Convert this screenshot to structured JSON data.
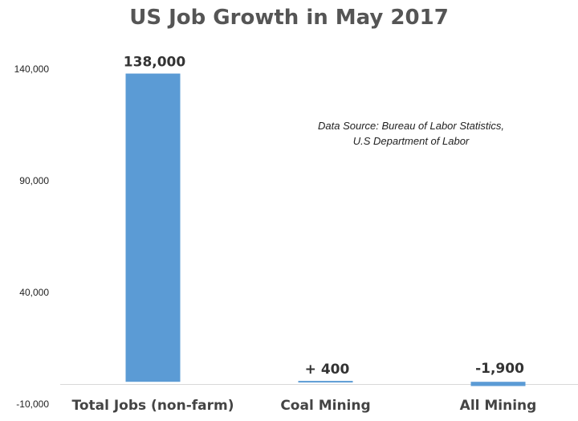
{
  "chart_data": {
    "type": "bar",
    "title": "US Job Growth in May 2017",
    "categories": [
      "Total Jobs (non-farm)",
      "Coal Mining",
      "All Mining"
    ],
    "values": [
      138000,
      400,
      -1900
    ],
    "data_labels": [
      "138,000",
      "+ 400",
      "-1,900"
    ],
    "ylim": [
      -10000,
      140000
    ],
    "yticks": [
      -10000,
      40000,
      90000,
      140000
    ],
    "ytick_labels": [
      "-10,000",
      "40,000",
      "90,000",
      "140,000"
    ],
    "grid": false,
    "bar_color": "#5b9bd5",
    "annotation": {
      "line1": "Data Source: Bureau of Labor Statistics,",
      "line2": "U.S Department of Labor"
    }
  }
}
